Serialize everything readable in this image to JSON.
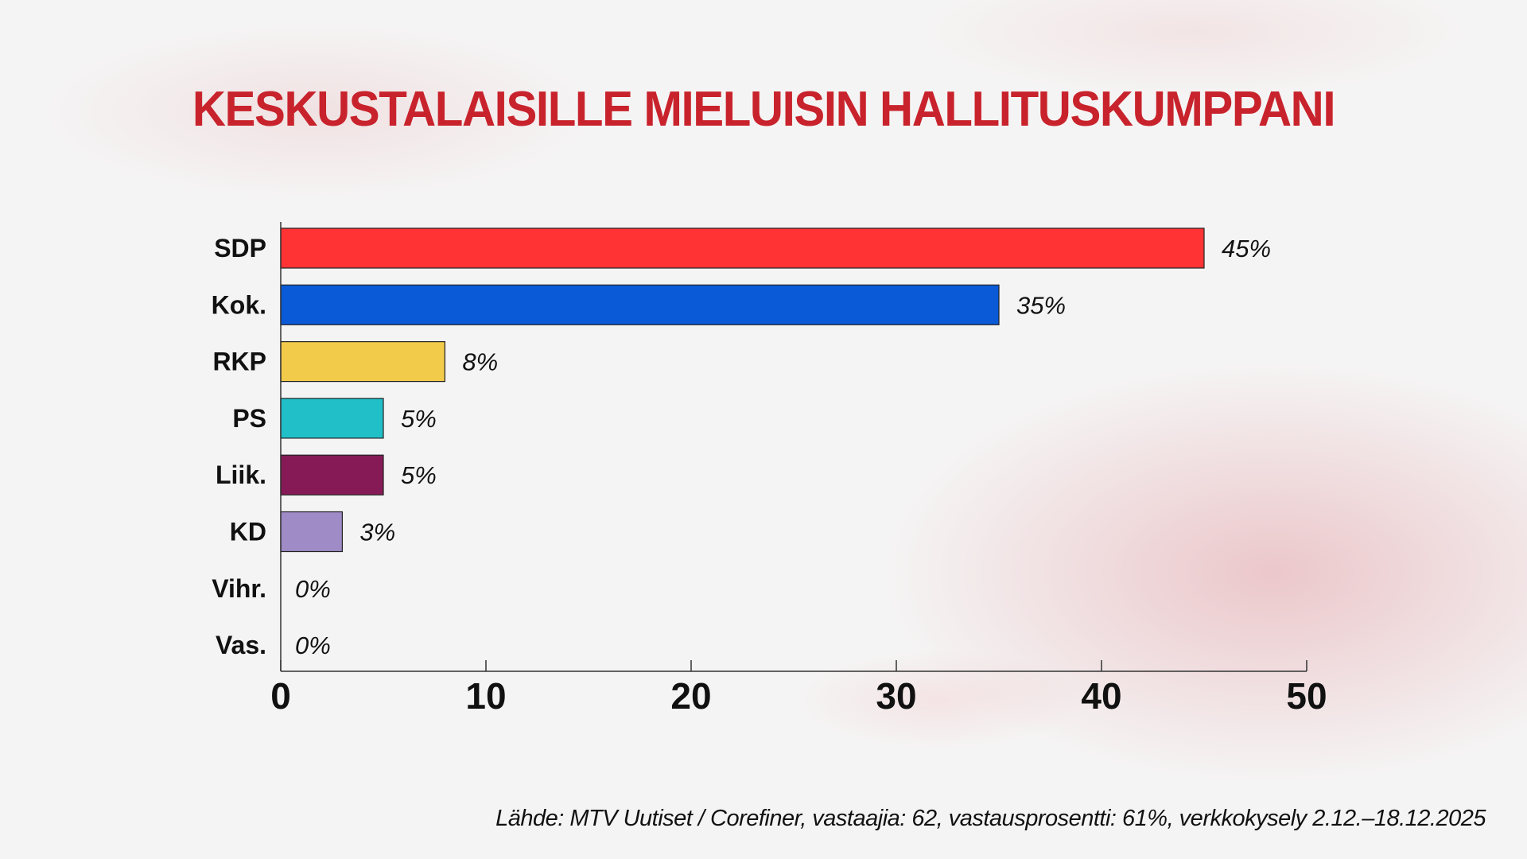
{
  "chart_data": {
    "type": "bar",
    "orientation": "horizontal",
    "title": "KESKUSTALAISILLE MIELUISIN HALLITUSKUMPPANI",
    "categories": [
      "SDP",
      "Kok.",
      "RKP",
      "PS",
      "Liik.",
      "KD",
      "Vihr.",
      "Vas."
    ],
    "values": [
      45,
      35,
      8,
      5,
      5,
      3,
      0,
      0
    ],
    "value_labels": [
      "45%",
      "35%",
      "8%",
      "5%",
      "5%",
      "3%",
      "0%",
      "0%"
    ],
    "colors": [
      "#ff3333",
      "#0a5ad8",
      "#f2cb4b",
      "#21bfc8",
      "#861a57",
      "#9f8bc6",
      "#999999",
      "#999999"
    ],
    "xlim": [
      0,
      50
    ],
    "xticks": [
      0,
      10,
      20,
      30,
      40,
      50
    ],
    "xlabel": "",
    "ylabel": "",
    "grid": false,
    "title_color": "#c8232c"
  },
  "source": "Lähde: MTV Uutiset / Corefiner, vastaajia: 62, vastausprosentti: 61%, verkkokysely 2.12.–18.12.2025"
}
